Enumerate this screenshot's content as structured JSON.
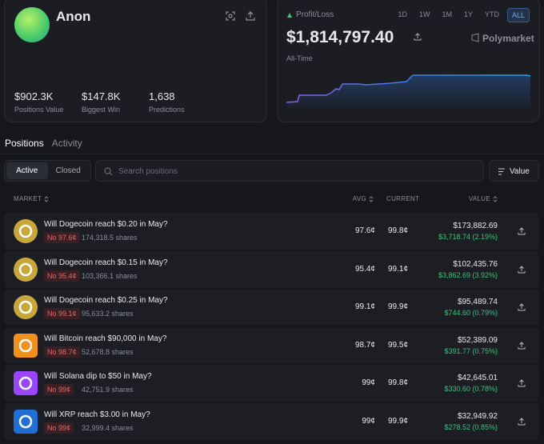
{
  "profile": {
    "name": "Anon",
    "stats": [
      {
        "value": "$902.3K",
        "label": "Positions Value"
      },
      {
        "value": "$147.8K",
        "label": "Biggest Win"
      },
      {
        "value": "1,638",
        "label": "Predictions"
      }
    ]
  },
  "pnl": {
    "title": "Profit/Loss",
    "ranges": [
      "1D",
      "1W",
      "1M",
      "1Y",
      "YTD",
      "ALL"
    ],
    "active_range": 5,
    "amount": "$1,814,797.40",
    "brand": "Polymarket",
    "period": "All-Time"
  },
  "tabs": [
    "Positions",
    "Activity"
  ],
  "filters": [
    "Active",
    "Closed"
  ],
  "search_placeholder": "Search positions",
  "sort_button": "Value",
  "columns": [
    "MARKET",
    "AVG",
    "CURRENT",
    "VALUE"
  ],
  "rows": [
    {
      "title": "Will Dogecoin reach $0.20 in May?",
      "outcome": "No 97.6¢",
      "shares": "174,318.5 shares",
      "avg": "97.6¢",
      "current": "99.8¢",
      "value": "$173,882.69",
      "change": "$3,718.74 (2.19%)",
      "icon_color": "#c9a63a",
      "icon_shape": "circle"
    },
    {
      "title": "Will Dogecoin reach $0.15 in May?",
      "outcome": "No 95.4¢",
      "shares": "103,366.1 shares",
      "avg": "95.4¢",
      "current": "99.1¢",
      "value": "$102,435.76",
      "change": "$3,862.69 (3.92%)",
      "icon_color": "#c9a63a",
      "icon_shape": "circle"
    },
    {
      "title": "Will Dogecoin reach $0.25 in May?",
      "outcome": "No 99.1¢",
      "shares": "95,633.2 shares",
      "avg": "99.1¢",
      "current": "99.9¢",
      "value": "$95,489.74",
      "change": "$744.60 (0.79%)",
      "icon_color": "#c9a63a",
      "icon_shape": "circle"
    },
    {
      "title": "Will Bitcoin reach $90,000 in May?",
      "outcome": "No 98.7¢",
      "shares": "52,678.8 shares",
      "avg": "98.7¢",
      "current": "99.5¢",
      "value": "$52,389.09",
      "change": "$391.77 (0.75%)",
      "icon_color": "#f2901c",
      "icon_shape": "square"
    },
    {
      "title": "Will Solana dip to $50 in May?",
      "outcome": "No 99¢",
      "shares": "42,751.9 shares",
      "avg": "99¢",
      "current": "99.8¢",
      "value": "$42,645.01",
      "change": "$330.60 (0.78%)",
      "icon_color": "#9a45ff",
      "icon_shape": "square"
    },
    {
      "title": "Will XRP reach $3.00 in May?",
      "outcome": "No 99¢",
      "shares": "32,999.4 shares",
      "avg": "99¢",
      "current": "99.9¢",
      "value": "$32,949.92",
      "change": "$278.52 (0.85%)",
      "icon_color": "#1f6fd6",
      "icon_shape": "square"
    }
  ]
}
